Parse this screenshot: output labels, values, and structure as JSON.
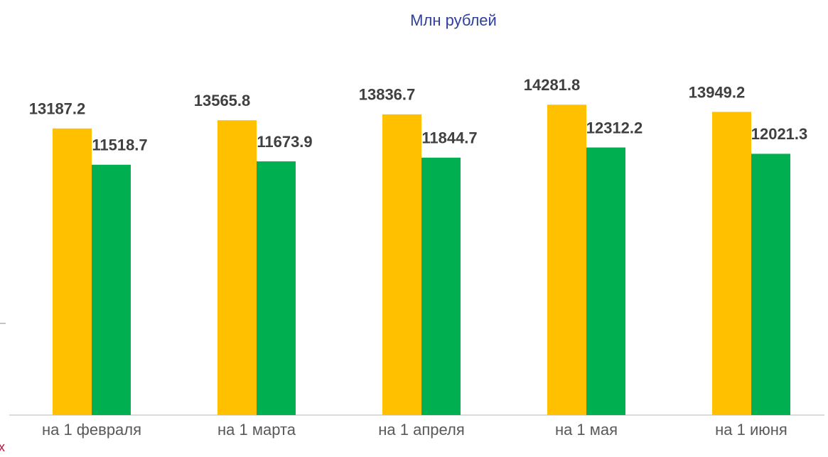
{
  "chart_data": {
    "type": "bar",
    "title": "Млн рублей",
    "annotation": "х",
    "categories": [
      "на 1 февраля",
      "на 1 марта",
      "на 1 апреля",
      "на 1 мая",
      "на 1 июня"
    ],
    "series": [
      {
        "color": "#FFC000",
        "values": [
          13187.2,
          13565.8,
          13836.7,
          14281.8,
          13949.2
        ]
      },
      {
        "color": "#00B050",
        "values": [
          11518.7,
          11673.9,
          11844.7,
          12312.2,
          12021.3
        ]
      }
    ],
    "ylim": [
      0,
      19000
    ],
    "grid": false
  }
}
